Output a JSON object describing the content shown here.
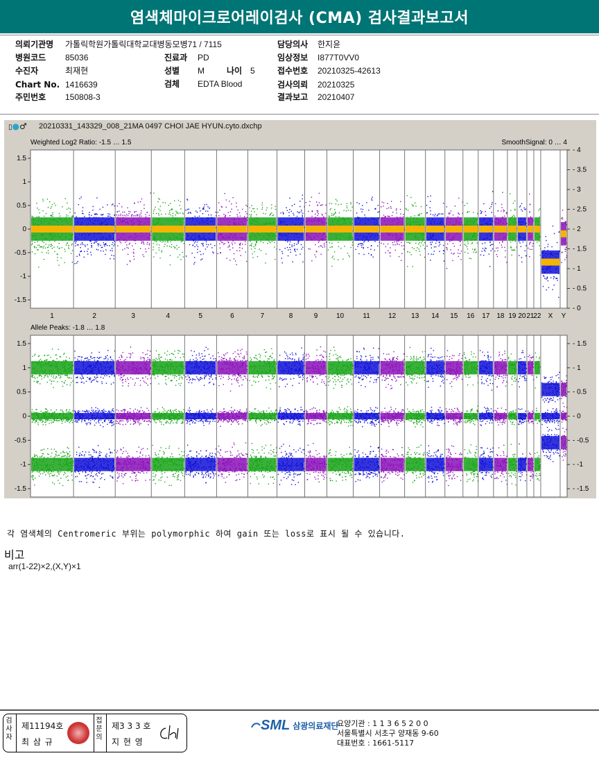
{
  "report": {
    "title": "염색체마이크로어레이검사 (CMA) 검사결과보고서"
  },
  "header": {
    "institution_label": "의뢰기관명",
    "institution_value": "가톨릭학원가톨릭대학교대병동모병71 / 7115",
    "hospital_code_label": "병원코드",
    "hospital_code_value": "85036",
    "receiver_label": "수진자",
    "receiver_value": "최재현",
    "chart_label": "Chart No.",
    "chart_value": "1416639",
    "rrn_label": "주민번호",
    "rrn_value": "150808-3",
    "dept_label": "진료과",
    "dept_value": "PD",
    "sex_label": "성별",
    "sex_value": "M",
    "age_label": "나이",
    "age_value": "5",
    "specimen_label": "검체",
    "specimen_value": "EDTA Blood",
    "doctor_label": "담당의사",
    "doctor_value": "한지윤",
    "clinical_label": "임상정보",
    "clinical_value": "I877T0VV0",
    "accession_label": "접수번호",
    "accession_value": "20210325-42613",
    "request_label": "검사의뢰",
    "request_value": "20210325",
    "result_label": "결과보고",
    "result_value": "20210407"
  },
  "plot": {
    "file_name": "20210331_143329_008_21MA 0497 CHOI JAE HYUN.cyto.dxchp",
    "top_panel_label": "Weighted Log2 Ratio: -1.5 … 1.5",
    "top_panel_right_label": "SmoothSignal: 0 … 4",
    "bottom_panel_label": "Allele Peaks: -1.8 … 1.8",
    "top_left_ticks": [
      "1.5",
      "1",
      "0.5",
      "0",
      "-0.5",
      "-1",
      "-1.5"
    ],
    "top_right_ticks": [
      "4",
      "3.5",
      "3",
      "2.5",
      "2",
      "1.5",
      "1",
      "0.5",
      "0"
    ],
    "bottom_left_ticks": [
      "1.5",
      "1",
      "0.5",
      "0",
      "-0.5",
      "-1",
      "-1.5"
    ],
    "bottom_right_ticks": [
      "1.5",
      "1",
      "0.5",
      "0",
      "-0.5",
      "-1",
      "-1.5"
    ],
    "chromosomes": [
      "1",
      "2",
      "3",
      "4",
      "5",
      "6",
      "7",
      "8",
      "9",
      "10",
      "11",
      "12",
      "13",
      "14",
      "15",
      "16",
      "17",
      "18",
      "19",
      "20",
      "21",
      "22",
      "X",
      "Y"
    ],
    "colors": {
      "green": "#17a317",
      "blue": "#1010d8",
      "purple": "#8a10b8",
      "smooth": "#f5b400"
    },
    "chromosome_colors": [
      "green",
      "blue",
      "purple",
      "green",
      "blue",
      "purple",
      "green",
      "blue",
      "purple",
      "green",
      "blue",
      "purple",
      "green",
      "blue",
      "purple",
      "green",
      "blue",
      "purple",
      "green",
      "blue",
      "purple",
      "green",
      "blue",
      "purple"
    ],
    "log2_ratio_means": [
      0,
      0,
      0,
      0,
      0,
      0,
      0,
      0,
      0,
      0,
      0,
      0,
      0,
      0,
      0,
      0,
      0,
      0,
      0,
      0,
      0,
      0,
      -0.7,
      -0.1
    ]
  },
  "notes": {
    "centromere_note": "각 염색체의 Centromeric 부위는 polymorphic 하여 gain 또는 loss로 표시 될 수 있습니다.",
    "remark_title": "비고",
    "remark_text": "arr(1-22)×2,(X,Y)×1"
  },
  "footer": {
    "tester_label": "검사자",
    "tester_no": "제11194호",
    "tester_name": "최 삼 규",
    "confirmer_label": "접문의",
    "confirmer_no": "제3 3 3 호",
    "confirmer_name": "지 현 영",
    "logo_text": "SML",
    "org_name": "삼광의료재단",
    "agency_line": "요양기관 : 1 1 3 6 5 2 0 0",
    "address_line": "서울특별시 서초구 양재동 9-60",
    "phone_line": "대표번호 : 1661-5117"
  }
}
